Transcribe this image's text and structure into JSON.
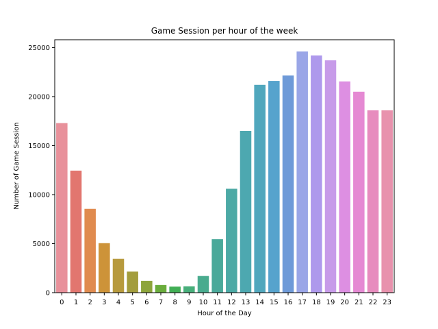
{
  "chart_data": {
    "type": "bar",
    "title": "Game Session per hour of the week",
    "xlabel": "Hour of the Day",
    "ylabel": "Number of Game Session",
    "categories": [
      "0",
      "1",
      "2",
      "3",
      "4",
      "5",
      "6",
      "7",
      "8",
      "9",
      "10",
      "11",
      "12",
      "13",
      "14",
      "15",
      "16",
      "17",
      "18",
      "19",
      "20",
      "21",
      "22",
      "23"
    ],
    "values": [
      17300,
      12450,
      8550,
      5050,
      3450,
      2150,
      1200,
      780,
      620,
      650,
      1700,
      5450,
      10600,
      16500,
      21200,
      21600,
      22150,
      24600,
      24200,
      23700,
      21550,
      20500,
      18600,
      18600
    ],
    "ylim": [
      0,
      25800
    ],
    "yticks": [
      0,
      5000,
      10000,
      15000,
      20000,
      25000
    ],
    "ytick_labels": [
      "0",
      "5000",
      "10000",
      "15000",
      "20000",
      "25000"
    ],
    "grid": false,
    "legend": "none",
    "colors": [
      "#e8919b",
      "#e2766f",
      "#e08b4f",
      "#cd9339",
      "#b79a3d",
      "#a39d3d",
      "#8da53b",
      "#6aac3c",
      "#41ae55",
      "#47ae7a",
      "#49ab8e",
      "#4aa99a",
      "#4ca9a5",
      "#4da8b0",
      "#50a7bd",
      "#56a3cd",
      "#6e9ad8",
      "#9aa6e7",
      "#ae99ec",
      "#c79be9",
      "#dd8fe2",
      "#e589d3",
      "#e78cbe",
      "#e892ad"
    ]
  }
}
